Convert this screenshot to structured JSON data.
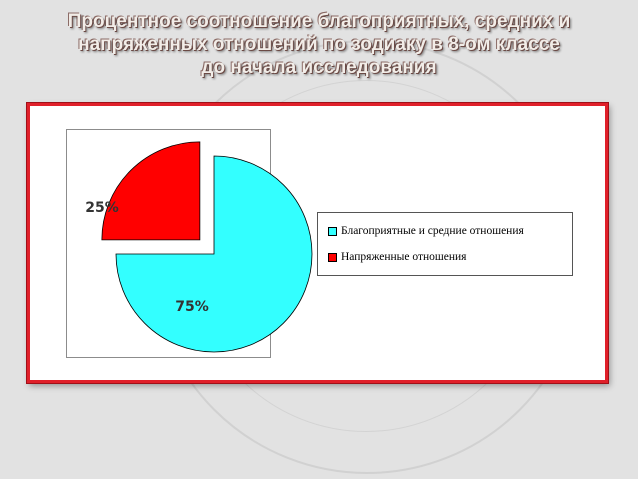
{
  "slide": {
    "title_lines": [
      "Процентное соотношение благоприятных, средних и",
      "напряженных отношений по зодиаку в 8-ом классе",
      "до начала исследования"
    ]
  },
  "chart_data": {
    "type": "pie",
    "categories": [
      "Благоприятные и средние отношения",
      "Напряженные отношения"
    ],
    "values": [
      75,
      25
    ],
    "data_labels": [
      "75%",
      "25%"
    ],
    "colors": [
      "#33ffff",
      "#ff0000"
    ],
    "exploded": [
      false,
      true
    ],
    "legend_position": "right"
  }
}
